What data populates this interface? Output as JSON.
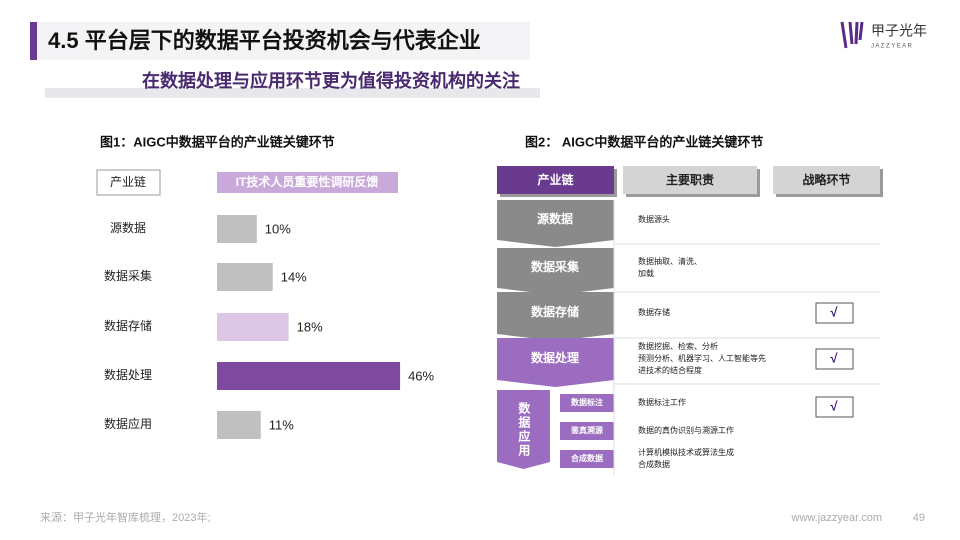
{
  "header": {
    "title": "4.5 平台层下的数据平台投资机会与代表企业",
    "subtitle": "在数据处理与应用环节更为值得投资机构的关注",
    "logo": "甲子光年",
    "logo_sub": "J A Z Z Y E A R"
  },
  "chart_data": {
    "type": "bar",
    "title": "图1：AIGC中数据平台的产业链关键环节",
    "category_header": "产业链",
    "value_header": "IT技术人员重要性调研反馈",
    "categories": [
      "源数据",
      "数据采集",
      "数据存储",
      "数据处理",
      "数据应用"
    ],
    "values": [
      10,
      14,
      18,
      46,
      11
    ],
    "value_labels": [
      "10%",
      "14%",
      "18%",
      "46%",
      "11%"
    ],
    "colors": [
      "#c0c0c0",
      "#c0c0c0",
      "#dcc8e6",
      "#7d4aa0",
      "#c0c0c0"
    ]
  },
  "figure2": {
    "title": "图2： AIGC中数据平台的产业链关键环节",
    "headers": [
      "产业链",
      "主要职责",
      "战略环节"
    ],
    "rows": [
      {
        "stage": "源数据",
        "duty": [
          "数据源头"
        ]
      },
      {
        "stage": "数据采集",
        "duty": [
          "数据抽取、清洗、",
          "加载"
        ]
      },
      {
        "stage": "数据存储",
        "duty": [
          "数据存储"
        ],
        "strategic": "√"
      },
      {
        "stage": "数据处理",
        "duty": [
          "数据挖掘、检索、分析",
          "预测分析、机器学习、人工智能等先",
          "进技术的结合程度"
        ],
        "strategic": "√"
      }
    ],
    "application": {
      "stage": "数据应用",
      "subs": [
        {
          "name": "数据标注",
          "duty": [
            "数据标注工作"
          ],
          "strategic": "√"
        },
        {
          "name": "鉴真溯源",
          "duty": [
            "数据的真伪识别与溯源工作"
          ]
        },
        {
          "name": "合成数据",
          "duty": [
            "计算机模拟技术或算法生成",
            "合成数据"
          ]
        }
      ]
    }
  },
  "footer": {
    "source": "来源：甲子光年智库梳理，2023年;",
    "website": "www.jazzyear.com",
    "page": "49"
  }
}
